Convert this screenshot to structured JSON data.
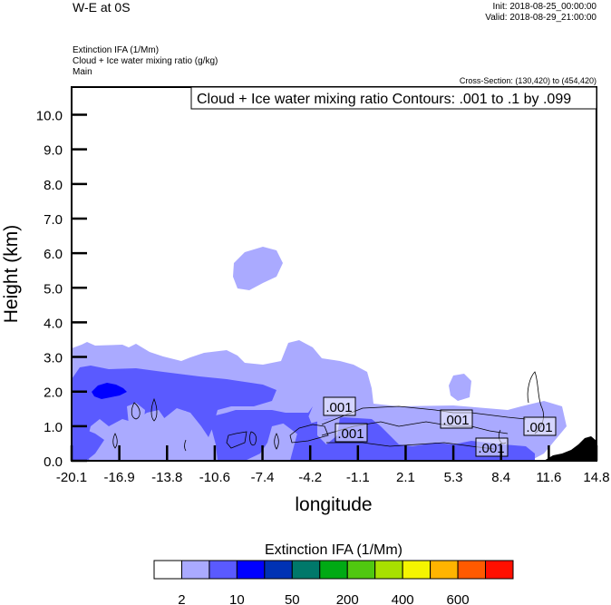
{
  "chart_data": {
    "type": "heatmap",
    "title": "W-E at 0S",
    "init": "Init: 2018-08-25_00:00:00",
    "valid": "Valid: 2018-08-29_21:00:00",
    "fields": [
      "Extinction IFA   (1/Mm)",
      "Cloud + Ice water mixing ratio   (g/kg)",
      "Main"
    ],
    "cross_section": "Cross-Section: (130,420) to (454,420)",
    "contour_info": "Cloud + Ice water mixing ratio Contours: .001 to .1 by .099",
    "contour_label": ".001",
    "xlabel": "longitude",
    "ylabel": "Height (km)",
    "xlim": [
      -20.1,
      14.8
    ],
    "ylim": [
      0,
      10.8
    ],
    "xticks": [
      "-20.1",
      "-16.9",
      "-13.8",
      "-10.6",
      "-7.4",
      "-4.2",
      "-1.1",
      "2.1",
      "5.3",
      "8.4",
      "11.6",
      "14.8"
    ],
    "yticks": [
      "0.0",
      "1.0",
      "2.0",
      "3.0",
      "4.0",
      "5.0",
      "6.0",
      "7.0",
      "8.0",
      "9.0",
      "10.0"
    ],
    "colorbar": {
      "title": "Extinction IFA  (1/Mm)",
      "colors": [
        "#ffffff",
        "#aaaaff",
        "#5a5aff",
        "#0000ff",
        "#0032b4",
        "#00786a",
        "#00aa14",
        "#50c810",
        "#a8e000",
        "#f5f500",
        "#ffb400",
        "#ff5a00",
        "#ff0f00"
      ],
      "labels": [
        "2",
        "10",
        "50",
        "200",
        "400",
        "600"
      ]
    }
  }
}
